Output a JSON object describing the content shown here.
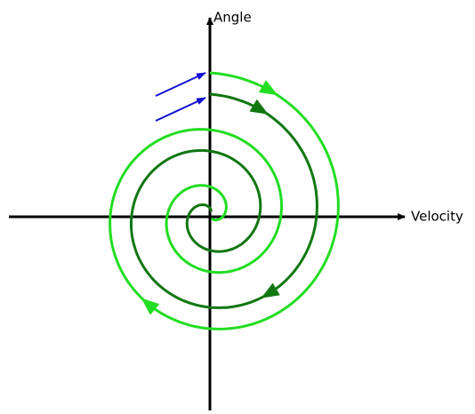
{
  "axes": {
    "y_label": "Angle",
    "x_label": "Velocity"
  }
}
